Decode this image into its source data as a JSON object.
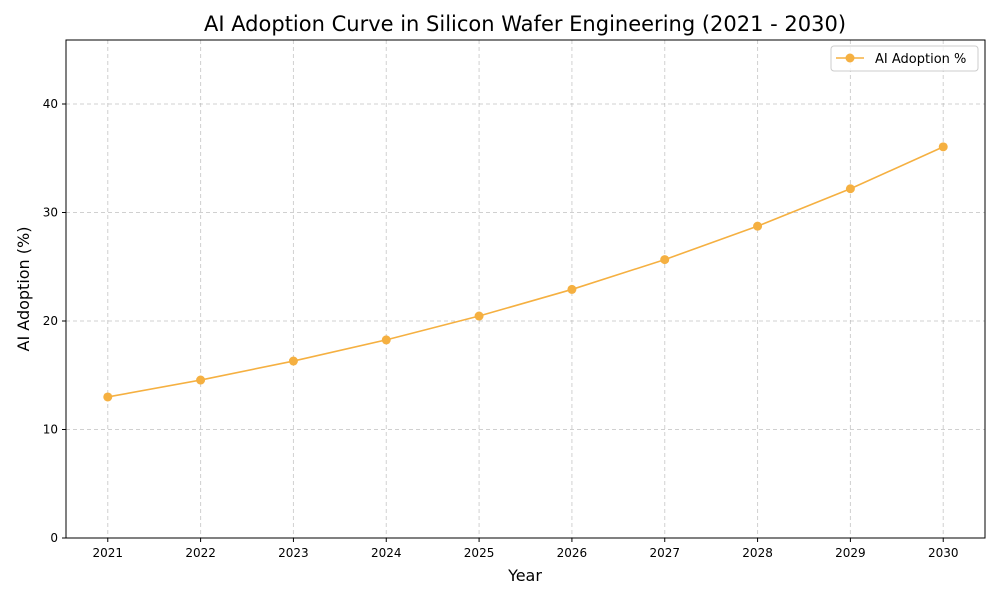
{
  "chart_data": {
    "type": "line",
    "title": "AI Adoption Curve in Silicon Wafer Engineering (2021 - 2030)",
    "xlabel": "Year",
    "ylabel": "AI Adoption (%)",
    "x": [
      2021,
      2022,
      2023,
      2024,
      2025,
      2026,
      2027,
      2028,
      2029,
      2030
    ],
    "series": [
      {
        "name": "AI Adoption %",
        "values": [
          13.0,
          14.56,
          16.31,
          18.26,
          20.46,
          22.91,
          25.66,
          28.74,
          32.19,
          36.05
        ],
        "color": "#f5b041",
        "marker": "circle"
      }
    ],
    "xlim": [
      2020.55,
      2030.45
    ],
    "ylim": [
      0,
      45.9
    ],
    "xticks": [
      2021,
      2022,
      2023,
      2024,
      2025,
      2026,
      2027,
      2028,
      2029,
      2030
    ],
    "yticks": [
      0,
      10,
      20,
      30,
      40
    ],
    "grid": true,
    "grid_style": "dashed",
    "legend": "top-right"
  }
}
